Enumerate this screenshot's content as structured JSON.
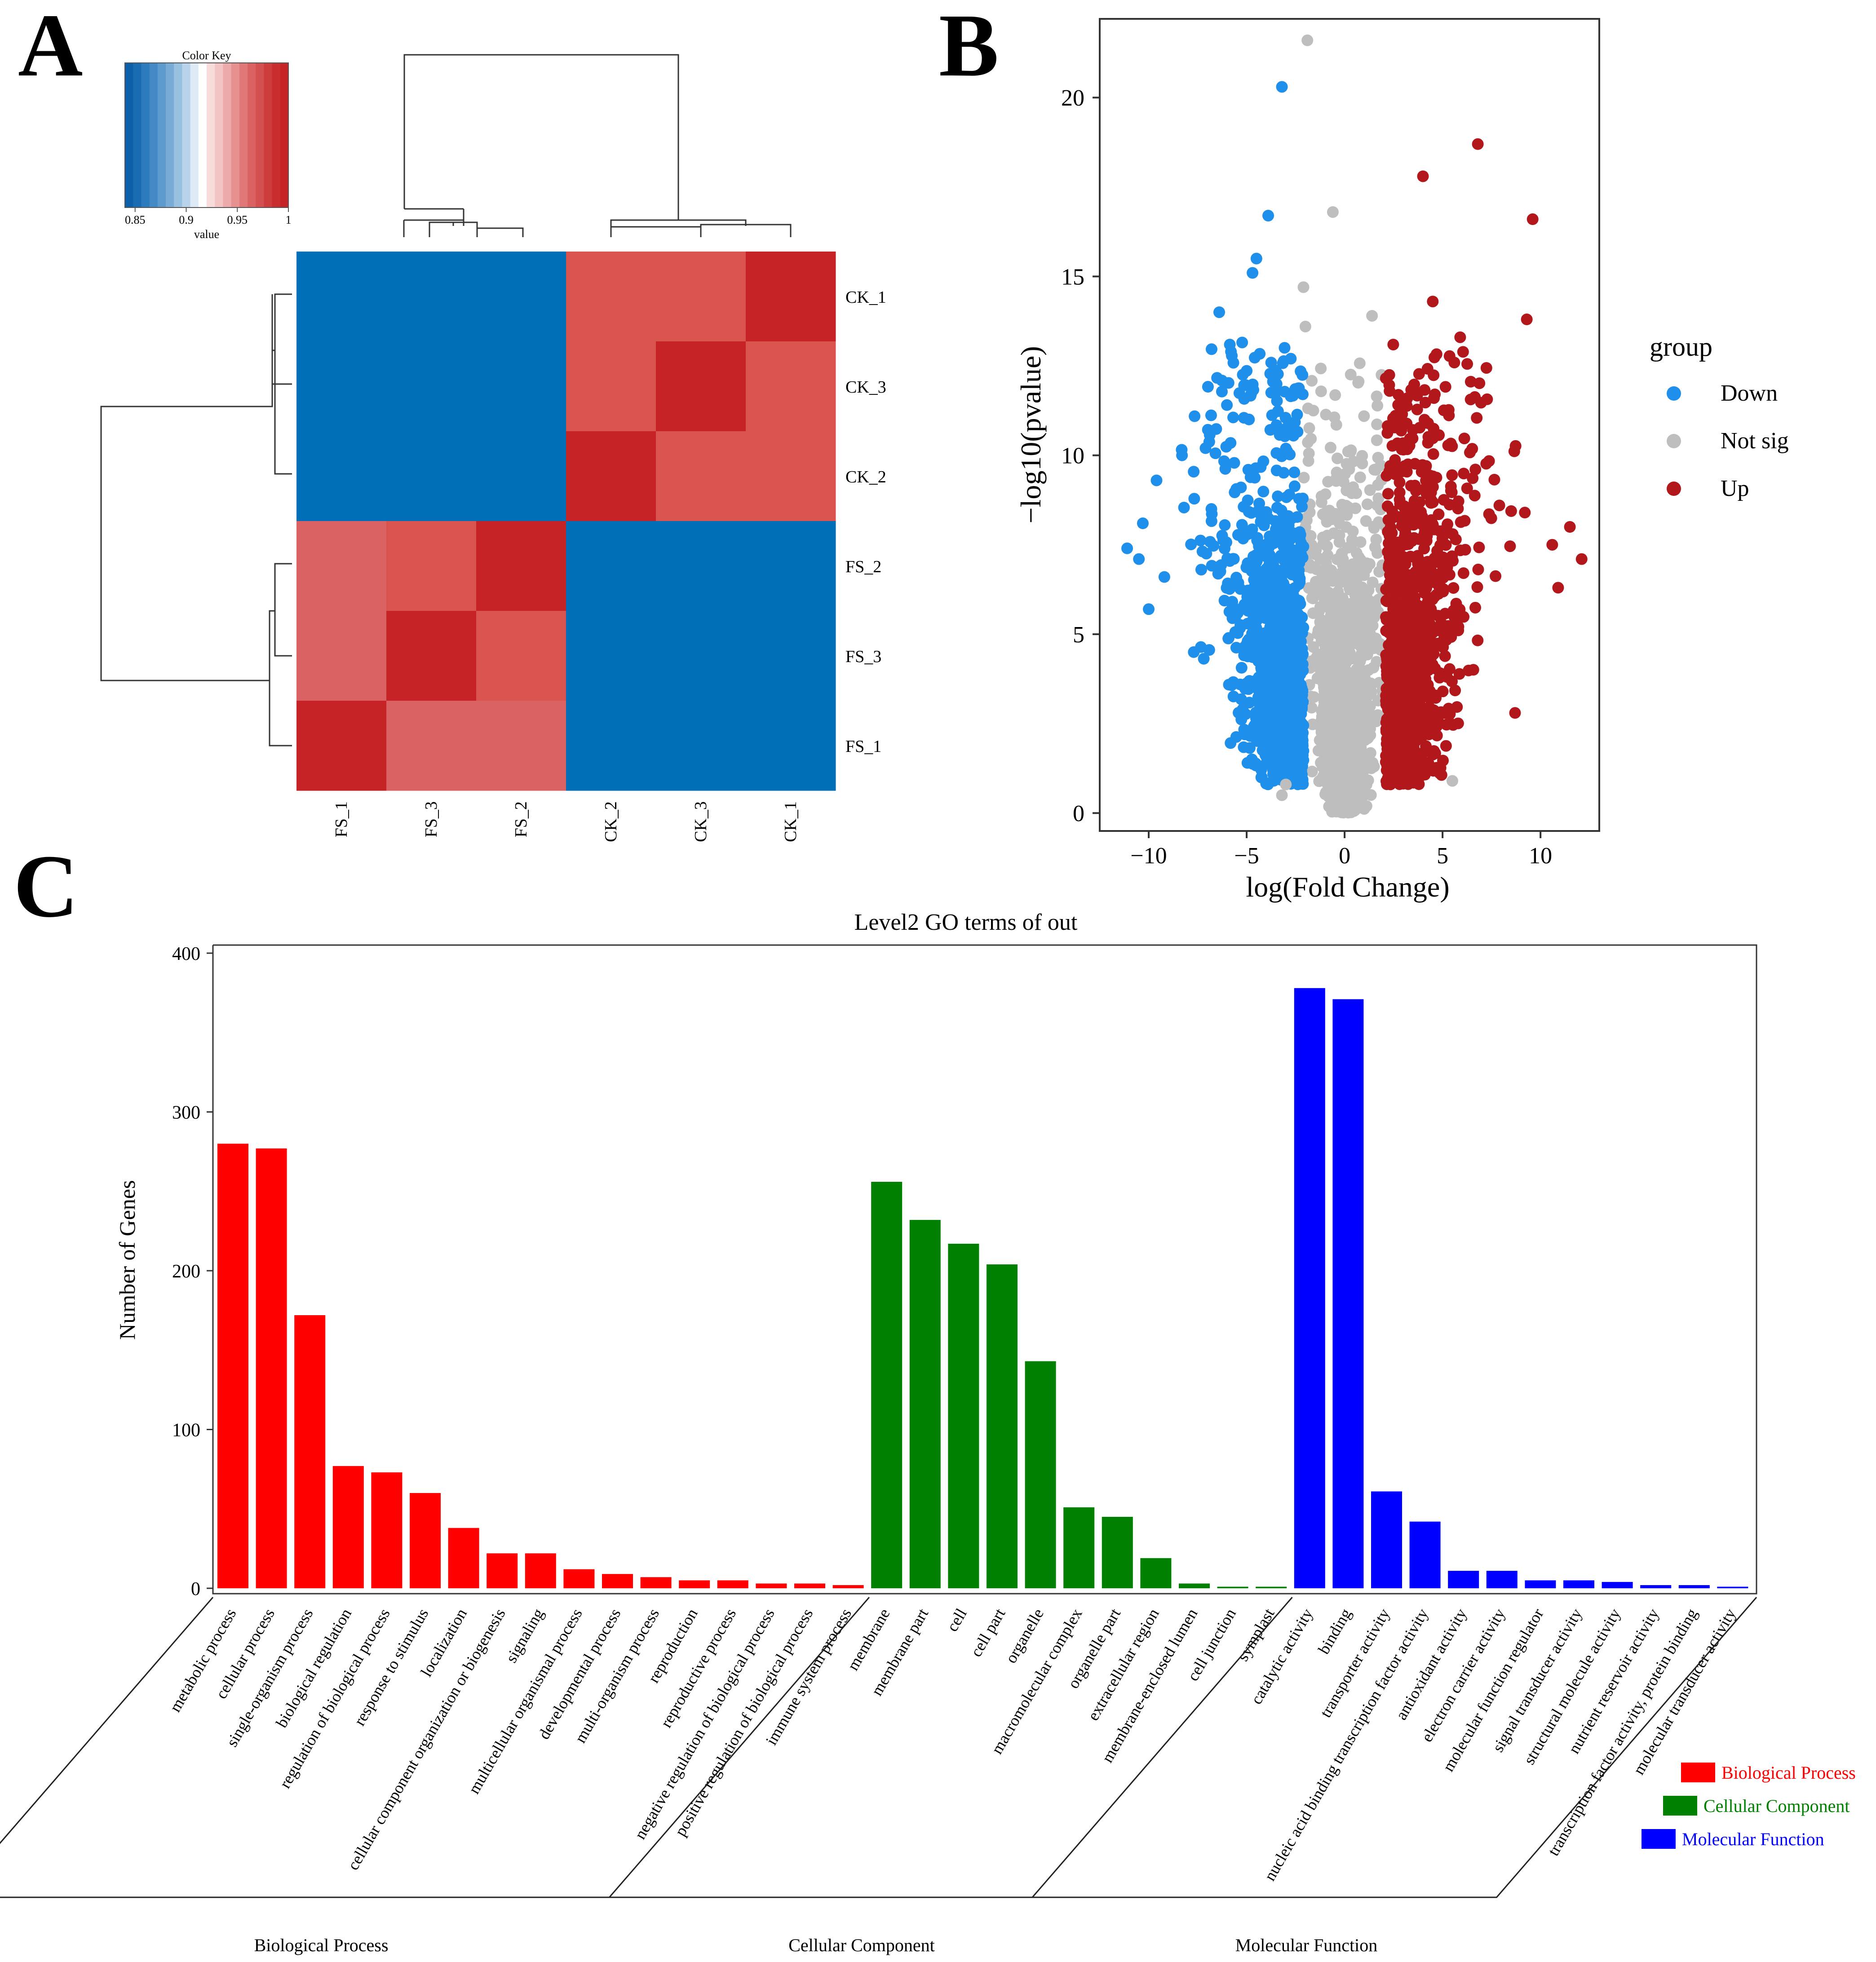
{
  "panels": {
    "a": "A",
    "b": "B",
    "c": "C"
  },
  "colors": {
    "heat_high": "#C62326",
    "heat_mid": "#D9534F",
    "heat_light": "#DA6262",
    "heat_low": "#006FB8",
    "down": "#1E8FEA",
    "notsig": "#BEBEBE",
    "up": "#B2181B",
    "bp": "#FF0000",
    "cc": "#008000",
    "mf": "#0000FF"
  },
  "chart_data": [
    {
      "panel": "A",
      "type": "heatmap",
      "title": "",
      "color_key": {
        "title": "Color Key",
        "xlabel": "value",
        "ticks": [
          "0.85",
          "0.9",
          "0.95",
          "1"
        ],
        "range": [
          0.84,
          1.0
        ],
        "colors": [
          "#0A5FA8",
          "#1A6CB2",
          "#2C7BBC",
          "#4289C5",
          "#5C99CD",
          "#78ABD6",
          "#98C1E0",
          "#B9D4EA",
          "#DDE9F4",
          "#FFFFFF",
          "#F8DCDC",
          "#F2C4C4",
          "#ECAAAA",
          "#E69090",
          "#E07878",
          "#DA6262",
          "#D44F4F",
          "#CE3D3D",
          "#C92D2D",
          "#C62326"
        ]
      },
      "rows": [
        "CK_1",
        "CK_3",
        "CK_2",
        "FS_2",
        "FS_3",
        "FS_1"
      ],
      "cols": [
        "FS_1",
        "FS_3",
        "FS_2",
        "CK_2",
        "CK_3",
        "CK_1"
      ],
      "values": [
        [
          0.85,
          0.85,
          0.85,
          0.97,
          0.97,
          0.99
        ],
        [
          0.85,
          0.85,
          0.85,
          0.97,
          0.99,
          0.97
        ],
        [
          0.85,
          0.85,
          0.85,
          0.99,
          0.97,
          0.97
        ],
        [
          0.96,
          0.97,
          0.99,
          0.85,
          0.85,
          0.85
        ],
        [
          0.96,
          0.99,
          0.97,
          0.85,
          0.85,
          0.85
        ],
        [
          0.99,
          0.96,
          0.96,
          0.85,
          0.85,
          0.85
        ]
      ],
      "dendrograms": true
    },
    {
      "panel": "B",
      "type": "scatter",
      "title": "",
      "xlabel": "log(Fold Change)",
      "ylabel": "−log10(pvalue)",
      "xlim": [
        -12.5,
        13
      ],
      "ylim": [
        -0.5,
        22.2
      ],
      "xticks": [
        "−10",
        "−5",
        "0",
        "5",
        "10"
      ],
      "xtick_values": [
        -10,
        -5,
        0,
        5,
        10
      ],
      "yticks": [
        "0",
        "5",
        "10",
        "15",
        "20"
      ],
      "ytick_values": [
        0,
        5,
        10,
        15,
        20
      ],
      "grid": false,
      "legend": {
        "title": "group",
        "position": "right",
        "entries": [
          {
            "label": "Down",
            "color_key": "down"
          },
          {
            "label": "Not sig",
            "color_key": "notsig"
          },
          {
            "label": "Up",
            "color_key": "up"
          }
        ]
      },
      "series": [
        {
          "name": "Not sig",
          "color_key": "notsig",
          "outliers": [
            [
              -1.9,
              21.6
            ],
            [
              -0.6,
              16.8
            ],
            [
              -2.1,
              14.7
            ],
            [
              -2.0,
              13.6
            ],
            [
              1.4,
              13.9
            ],
            [
              5.5,
              0.9
            ],
            [
              -3.0,
              0.8
            ],
            [
              -3.2,
              0.5
            ]
          ]
        },
        {
          "name": "Down",
          "color_key": "down",
          "outliers": [
            [
              -3.2,
              20.3
            ],
            [
              -3.9,
              16.7
            ],
            [
              -4.5,
              15.5
            ],
            [
              -4.7,
              15.1
            ],
            [
              -6.4,
              14.0
            ],
            [
              -8.3,
              10.0
            ],
            [
              -9.6,
              9.3
            ],
            [
              -10.3,
              8.1
            ],
            [
              -11.1,
              7.4
            ],
            [
              -10.5,
              7.1
            ],
            [
              -9.2,
              6.6
            ],
            [
              -10.0,
              5.7
            ],
            [
              -7.7,
              4.5
            ],
            [
              -5.1,
              2.2
            ],
            [
              -7.1,
              10.2
            ],
            [
              -5.8,
              12.9
            ],
            [
              -6.8,
              8.5
            ]
          ]
        },
        {
          "name": "Up",
          "color_key": "up",
          "outliers": [
            [
              6.8,
              18.7
            ],
            [
              4.0,
              17.8
            ],
            [
              9.6,
              16.6
            ],
            [
              9.3,
              13.8
            ],
            [
              4.5,
              14.3
            ],
            [
              5.9,
              13.3
            ],
            [
              11.5,
              8.0
            ],
            [
              12.1,
              7.1
            ],
            [
              10.6,
              7.5
            ],
            [
              10.9,
              6.3
            ],
            [
              8.7,
              2.8
            ],
            [
              9.2,
              8.4
            ],
            [
              7.9,
              8.6
            ]
          ]
        }
      ]
    },
    {
      "panel": "C",
      "type": "bar",
      "title": "Level2 GO terms of out",
      "xlabel": "",
      "ylabel": "Number of Genes",
      "ylim": [
        0,
        400
      ],
      "yticks": [
        "0",
        "100",
        "200",
        "300",
        "400"
      ],
      "ytick_values": [
        0,
        100,
        200,
        300,
        400
      ],
      "grid": false,
      "legend": {
        "position": "bottom-right",
        "entries": [
          {
            "label": "Biological Process",
            "color_key": "bp"
          },
          {
            "label": "Cellular Component",
            "color_key": "cc"
          },
          {
            "label": "Molecular Function",
            "color_key": "mf"
          }
        ]
      },
      "series": [
        {
          "name": "Biological Process",
          "color_key": "bp",
          "categories": [
            "metabolic process",
            "cellular process",
            "single-organism process",
            "biological regulation",
            "regulation of biological process",
            "response to stimulus",
            "localization",
            "cellular component organization or biogenesis",
            "signaling",
            "multicellular organismal process",
            "developmental process",
            "multi-organism process",
            "reproduction",
            "reproductive process",
            "negative regulation of biological process",
            "positive regulation of biological process",
            "immune system process"
          ],
          "values": [
            280,
            277,
            172,
            77,
            73,
            60,
            38,
            22,
            22,
            12,
            9,
            7,
            5,
            5,
            3,
            3,
            2
          ]
        },
        {
          "name": "Cellular Component",
          "color_key": "cc",
          "categories": [
            "membrane",
            "membrane part",
            "cell",
            "cell part",
            "organelle",
            "macromolecular complex",
            "organelle part",
            "extracellular region",
            "membrane-enclosed lumen",
            "cell junction",
            "symplast"
          ],
          "values": [
            256,
            232,
            217,
            204,
            143,
            51,
            45,
            19,
            3,
            1,
            1
          ]
        },
        {
          "name": "Molecular Function",
          "color_key": "mf",
          "categories": [
            "catalytic activity",
            "binding",
            "transporter activity",
            "nucleic acid binding transcription factor activity",
            "antioxidant activity",
            "electron carrier activity",
            "molecular function regulator",
            "signal transducer activity",
            "structural molecule activity",
            "nutrient reservoir activity",
            "transcription factor activity, protein binding",
            "molecular transducer activity"
          ],
          "values": [
            378,
            371,
            61,
            42,
            11,
            11,
            5,
            5,
            4,
            2,
            2,
            1
          ]
        }
      ]
    }
  ]
}
